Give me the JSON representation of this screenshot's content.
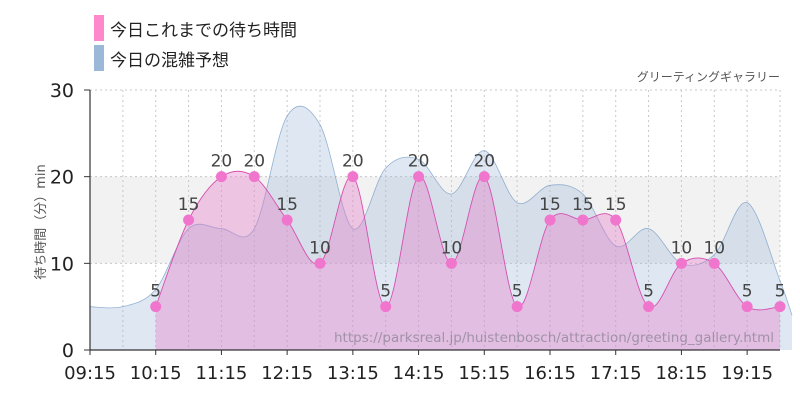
{
  "chart_data": {
    "type": "line",
    "title": "グリーティングギャラリー",
    "ylabel": "待ち時間（分）min",
    "xlabel": "",
    "ylim": [
      0,
      30
    ],
    "yticks": [
      0,
      10,
      20,
      30
    ],
    "shaded_band": [
      10,
      20
    ],
    "x_tick_labels": [
      "09:15",
      "10:15",
      "11:15",
      "12:15",
      "13:15",
      "14:15",
      "15:15",
      "16:15",
      "17:15",
      "18:15",
      "19:15"
    ],
    "legend_position": "top-left",
    "series": [
      {
        "name": "今日これまでの待ち時間",
        "color": "#ff88cc",
        "x": [
          "10:15",
          "10:45",
          "11:15",
          "11:45",
          "12:15",
          "12:45",
          "13:15",
          "13:45",
          "14:15",
          "14:45",
          "15:15",
          "15:45",
          "16:15",
          "16:45",
          "17:15",
          "17:45",
          "18:15",
          "18:45",
          "19:15",
          "19:45"
        ],
        "values": [
          5,
          15,
          20,
          20,
          15,
          10,
          20,
          5,
          20,
          10,
          20,
          5,
          15,
          15,
          15,
          5,
          10,
          10,
          5,
          5
        ]
      },
      {
        "name": "今日の混雑予想",
        "color": "#9cb8d8",
        "x": [
          "09:15",
          "09:45",
          "10:15",
          "10:45",
          "11:15",
          "11:45",
          "12:15",
          "12:45",
          "13:15",
          "13:45",
          "14:15",
          "14:45",
          "15:15",
          "15:45",
          "16:15",
          "16:45",
          "17:15",
          "17:45",
          "18:15",
          "18:45",
          "19:15",
          "19:45"
        ],
        "values": [
          5,
          5,
          7,
          14,
          14,
          14,
          27,
          26,
          14,
          21,
          22,
          18,
          23,
          17,
          19,
          18,
          12,
          14,
          10,
          11,
          17,
          8
        ]
      }
    ],
    "watermark": "https://parksreal.jp/huistenbosch/attraction/greeting_gallery.html"
  }
}
